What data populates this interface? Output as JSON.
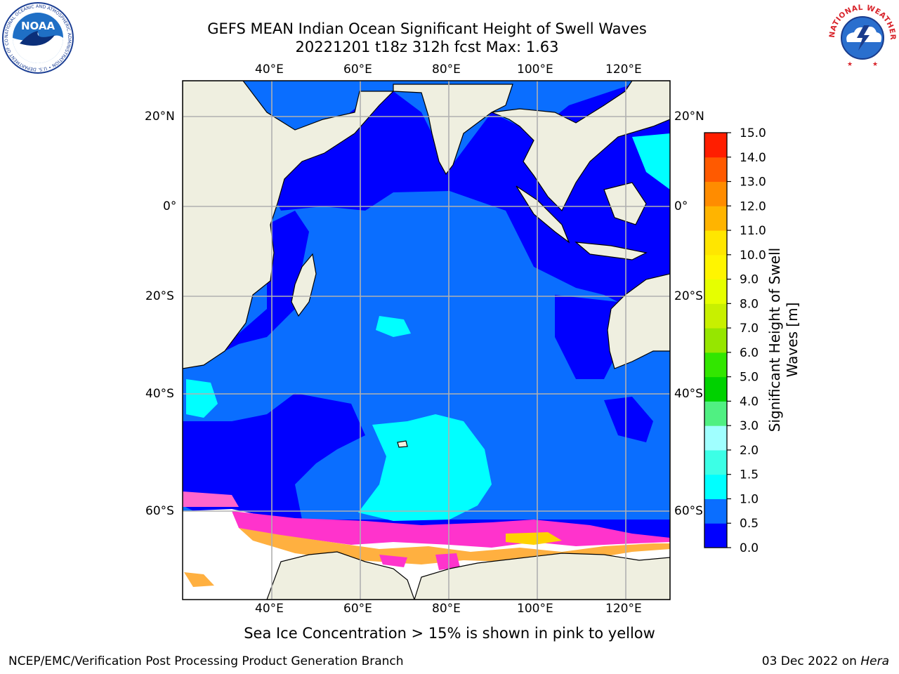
{
  "title": {
    "line1": "GEFS MEAN Indian Ocean Significant Height of Swell Waves",
    "line2": "20221201 t18z 312h fcst   Max: 1.63"
  },
  "caption": "Sea Ice Concentration > 15% is shown in pink to yellow",
  "footer": {
    "left": "NCEP/EMC/Verification Post Processing Product Generation Branch",
    "right_prefix": "03 Dec 2022 on ",
    "right_host": "Hera"
  },
  "map": {
    "lon_ticks": [
      "40°E",
      "60°E",
      "80°E",
      "100°E",
      "120°E"
    ],
    "lat_ticks": [
      "20°N",
      "0°",
      "20°S",
      "40°S",
      "60°S"
    ]
  },
  "colorbar": {
    "label_line1": "Significant Height of Swell",
    "label_line2": "Waves [m]",
    "ticks": [
      "0.0",
      "0.5",
      "1.0",
      "1.5",
      "2.0",
      "3.0",
      "4.0",
      "5.0",
      "6.0",
      "7.0",
      "8.0",
      "9.0",
      "10.0",
      "11.0",
      "12.0",
      "13.0",
      "14.0",
      "15.0"
    ],
    "colors": [
      "#0000ff",
      "#0a6eff",
      "#00ffff",
      "#3cffe6",
      "#a0ffff",
      "#50f082",
      "#00d200",
      "#32e600",
      "#96e600",
      "#c8f000",
      "#e6ff00",
      "#fff500",
      "#ffe600",
      "#ffb400",
      "#ff8c00",
      "#ff5a00",
      "#ff1e00",
      "#ff0000"
    ]
  },
  "logos": {
    "noaa_text": "NOAA",
    "noaa_ring": "NATIONAL OCEANIC AND ATMOSPHERIC ADMINISTRATION • U.S. DEPARTMENT OF COMMERCE",
    "nws_ring": "NATIONAL WEATHER SERVICE"
  }
}
